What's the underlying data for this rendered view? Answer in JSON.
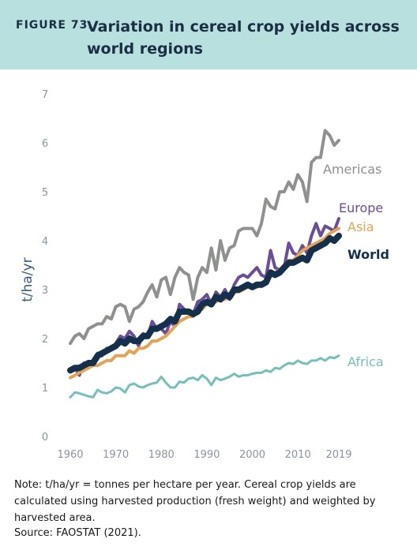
{
  "header": {
    "figure_label": "FIGURE 73.",
    "title": "Variation in cereal crop yields across world regions",
    "background": "#b8e0df"
  },
  "note": "Note: t/ha/yr = tonnes per hectare per year. Cereal crop yields are calculated using harvested production (fresh weight) and weighted by harvested area.",
  "source": "Source: FAOSTAT (2021).",
  "chart_data": {
    "type": "line",
    "title": "Variation in cereal crop yields across world regions",
    "xlabel": "",
    "ylabel": "t/ha/yr",
    "xlim": [
      1960,
      2019
    ],
    "ylim": [
      0,
      7
    ],
    "x_ticks": [
      "1960",
      "1970",
      "1980",
      "1990",
      "2000",
      "2010",
      "2019"
    ],
    "y_ticks": [
      "0",
      "1",
      "2",
      "3",
      "4",
      "5",
      "6",
      "7"
    ],
    "grid": false,
    "legend": "inline labels at line ends",
    "x": [
      1960,
      1961,
      1962,
      1963,
      1964,
      1965,
      1966,
      1967,
      1968,
      1969,
      1970,
      1971,
      1972,
      1973,
      1974,
      1975,
      1976,
      1977,
      1978,
      1979,
      1980,
      1981,
      1982,
      1983,
      1984,
      1985,
      1986,
      1987,
      1988,
      1989,
      1990,
      1991,
      1992,
      1993,
      1994,
      1995,
      1996,
      1997,
      1998,
      1999,
      2000,
      2001,
      2002,
      2003,
      2004,
      2005,
      2006,
      2007,
      2008,
      2009,
      2010,
      2011,
      2012,
      2013,
      2014,
      2015,
      2016,
      2017,
      2018,
      2019
    ],
    "series": [
      {
        "name": "Americas",
        "color": "#8e918d",
        "values": [
          1.9,
          2.05,
          2.1,
          2.0,
          2.2,
          2.25,
          2.3,
          2.3,
          2.45,
          2.4,
          2.65,
          2.7,
          2.65,
          2.35,
          2.6,
          2.65,
          2.75,
          2.95,
          3.1,
          2.85,
          3.2,
          3.25,
          2.9,
          3.25,
          3.45,
          3.35,
          3.3,
          2.8,
          3.25,
          3.45,
          3.35,
          3.85,
          3.4,
          4.0,
          3.6,
          3.85,
          3.9,
          4.2,
          4.25,
          4.25,
          4.25,
          4.1,
          4.35,
          4.85,
          4.7,
          4.65,
          5.0,
          5.0,
          5.2,
          5.05,
          5.35,
          5.2,
          4.8,
          5.6,
          5.7,
          5.7,
          6.25,
          6.15,
          5.95,
          6.05
        ]
      },
      {
        "name": "Europe",
        "color": "#6b4e9b",
        "values": [
          1.35,
          1.4,
          1.25,
          1.5,
          1.45,
          1.55,
          1.7,
          1.65,
          1.8,
          1.8,
          1.9,
          2.05,
          2.0,
          2.15,
          2.05,
          1.85,
          2.1,
          2.05,
          2.35,
          2.2,
          2.2,
          2.1,
          2.35,
          2.25,
          2.7,
          2.6,
          2.55,
          2.5,
          2.75,
          2.8,
          2.9,
          2.7,
          2.95,
          2.85,
          3.0,
          2.8,
          3.1,
          3.25,
          3.3,
          3.25,
          3.35,
          3.45,
          3.3,
          3.25,
          3.8,
          3.45,
          3.4,
          3.45,
          3.95,
          3.75,
          3.7,
          3.9,
          3.75,
          4.1,
          4.35,
          4.1,
          4.3,
          4.25,
          4.2,
          4.45
        ]
      },
      {
        "name": "Asia",
        "color": "#e9a24f",
        "values": [
          1.2,
          1.25,
          1.3,
          1.35,
          1.4,
          1.45,
          1.45,
          1.5,
          1.55,
          1.55,
          1.65,
          1.65,
          1.65,
          1.75,
          1.7,
          1.8,
          1.8,
          1.85,
          1.95,
          1.95,
          2.0,
          2.05,
          2.15,
          2.25,
          2.35,
          2.4,
          2.45,
          2.45,
          2.55,
          2.6,
          2.7,
          2.7,
          2.75,
          2.8,
          2.8,
          2.85,
          2.95,
          2.95,
          3.0,
          3.05,
          3.05,
          3.05,
          3.1,
          3.15,
          3.3,
          3.35,
          3.4,
          3.5,
          3.6,
          3.6,
          3.7,
          3.8,
          3.85,
          3.9,
          3.95,
          4.0,
          4.05,
          4.15,
          4.2,
          4.25
        ]
      },
      {
        "name": "World",
        "color": "#14304d",
        "values": [
          1.35,
          1.4,
          1.4,
          1.45,
          1.5,
          1.5,
          1.65,
          1.7,
          1.75,
          1.8,
          1.85,
          1.95,
          1.9,
          2.0,
          1.95,
          1.95,
          2.05,
          2.05,
          2.2,
          2.2,
          2.25,
          2.3,
          2.4,
          2.35,
          2.55,
          2.55,
          2.55,
          2.5,
          2.55,
          2.7,
          2.75,
          2.7,
          2.85,
          2.8,
          2.9,
          2.85,
          3.0,
          3.0,
          3.05,
          3.1,
          3.05,
          3.1,
          3.1,
          3.15,
          3.35,
          3.3,
          3.35,
          3.45,
          3.55,
          3.55,
          3.6,
          3.65,
          3.6,
          3.8,
          3.85,
          3.9,
          3.95,
          4.05,
          4.0,
          4.1
        ]
      },
      {
        "name": "Africa",
        "color": "#72c2bc",
        "values": [
          0.8,
          0.9,
          0.88,
          0.85,
          0.82,
          0.8,
          0.95,
          0.9,
          0.88,
          0.92,
          1.0,
          0.98,
          0.9,
          1.05,
          1.08,
          1.02,
          1.0,
          1.05,
          1.08,
          1.1,
          1.22,
          1.1,
          1.0,
          1.0,
          1.12,
          1.1,
          1.18,
          1.2,
          1.15,
          1.25,
          1.18,
          1.05,
          1.2,
          1.15,
          1.18,
          1.22,
          1.28,
          1.22,
          1.25,
          1.25,
          1.28,
          1.3,
          1.3,
          1.35,
          1.32,
          1.4,
          1.38,
          1.45,
          1.5,
          1.48,
          1.55,
          1.5,
          1.48,
          1.55,
          1.55,
          1.6,
          1.55,
          1.62,
          1.6,
          1.65
        ]
      }
    ]
  }
}
